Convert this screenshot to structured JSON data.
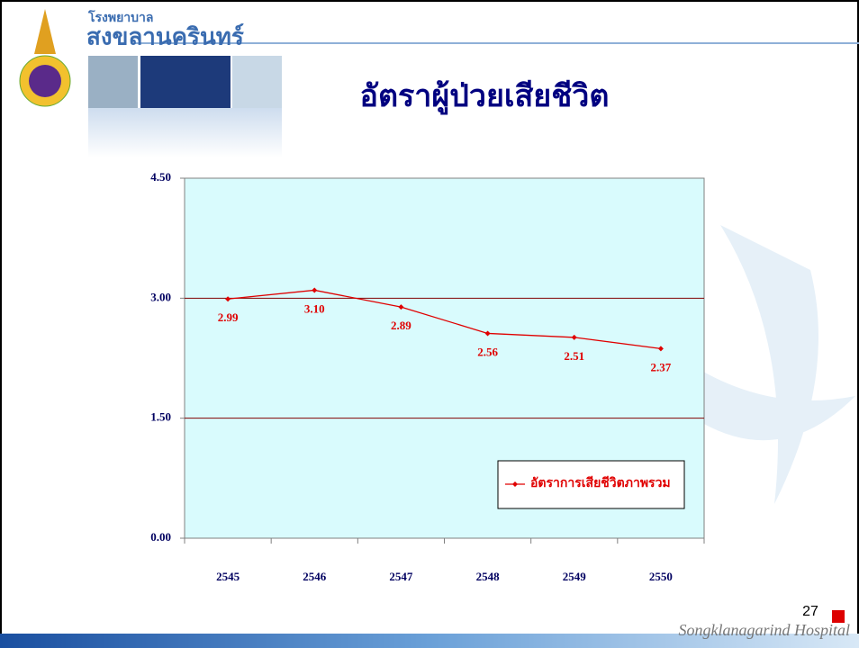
{
  "header": {
    "org_small": "โรงพยาบาล",
    "org_large": "สงขลานครินทร์"
  },
  "chart_data": {
    "type": "line",
    "title": "อัตราผู้ป่วยเสียชีวิต",
    "categories": [
      "2545",
      "2546",
      "2547",
      "2548",
      "2549",
      "2550"
    ],
    "series": [
      {
        "name": "อัตราการเสียชีวิตภาพรวม",
        "color": "#e00000",
        "values": [
          2.99,
          3.1,
          2.89,
          2.56,
          2.51,
          2.37
        ],
        "value_labels": [
          "2.99",
          "3.10",
          "2.89",
          "2.56",
          "2.51",
          "2.37"
        ]
      }
    ],
    "ylim": [
      0,
      4.5
    ],
    "yticks": [
      {
        "value": 0,
        "label": "0.00"
      },
      {
        "value": 1.5,
        "label": "1.50"
      },
      {
        "value": 3,
        "label": "3.00"
      },
      {
        "value": 4.5,
        "label": "4.50"
      }
    ],
    "grid": true,
    "legend": "lower right"
  },
  "footer": {
    "page": "27",
    "hospital": "Songklanagarind Hospital"
  }
}
